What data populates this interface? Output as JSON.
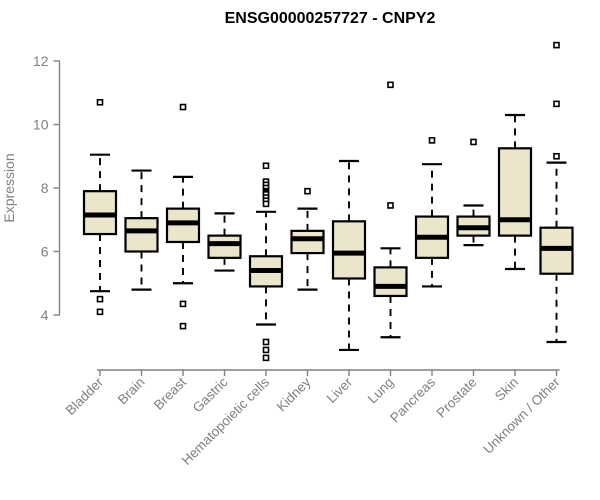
{
  "chart_data": {
    "type": "boxplot",
    "title": "ENSG00000257727 - CNPY2",
    "ylabel": "Expression",
    "xlabel": "",
    "ylim": [
      4,
      12
    ],
    "yticks": [
      4,
      6,
      8,
      10,
      12
    ],
    "grid": false,
    "legend": "none",
    "categories": [
      "Bladder",
      "Brain",
      "Breast",
      "Gastric",
      "Hematopoietic cells",
      "Kidney",
      "Liver",
      "Lung",
      "Pancreas",
      "Prostate",
      "Skin",
      "Unknown / Other"
    ],
    "boxes": [
      {
        "category": "Bladder",
        "whisker_low": 4.75,
        "q1": 6.55,
        "median": 7.15,
        "q3": 7.9,
        "whisker_high": 9.05,
        "outliers": [
          10.7,
          4.5,
          4.1
        ]
      },
      {
        "category": "Brain",
        "whisker_low": 4.8,
        "q1": 6.0,
        "median": 6.65,
        "q3": 7.05,
        "whisker_high": 8.55,
        "outliers": []
      },
      {
        "category": "Breast",
        "whisker_low": 5.0,
        "q1": 6.3,
        "median": 6.9,
        "q3": 7.35,
        "whisker_high": 8.35,
        "outliers": [
          10.55,
          4.35,
          3.65
        ]
      },
      {
        "category": "Gastric",
        "whisker_low": 5.4,
        "q1": 5.8,
        "median": 6.25,
        "q3": 6.5,
        "whisker_high": 7.2,
        "outliers": []
      },
      {
        "category": "Hematopoietic cells",
        "whisker_low": 3.7,
        "q1": 4.9,
        "median": 5.4,
        "q3": 5.85,
        "whisker_high": 7.25,
        "outliers": [
          8.7,
          8.2,
          8.1,
          8.0,
          7.9,
          7.85,
          7.8,
          7.7,
          7.6,
          7.5,
          3.15,
          2.9,
          2.65
        ]
      },
      {
        "category": "Kidney",
        "whisker_low": 4.8,
        "q1": 5.95,
        "median": 6.4,
        "q3": 6.65,
        "whisker_high": 7.35,
        "outliers": [
          7.9
        ]
      },
      {
        "category": "Liver",
        "whisker_low": 2.9,
        "q1": 5.15,
        "median": 5.95,
        "q3": 6.95,
        "whisker_high": 8.85,
        "outliers": []
      },
      {
        "category": "Lung",
        "whisker_low": 3.3,
        "q1": 4.6,
        "median": 4.9,
        "q3": 5.5,
        "whisker_high": 6.1,
        "outliers": [
          11.25,
          7.45
        ]
      },
      {
        "category": "Pancreas",
        "whisker_low": 4.9,
        "q1": 5.8,
        "median": 6.45,
        "q3": 7.1,
        "whisker_high": 8.75,
        "outliers": [
          9.5
        ]
      },
      {
        "category": "Prostate",
        "whisker_low": 6.2,
        "q1": 6.5,
        "median": 6.75,
        "q3": 7.1,
        "whisker_high": 7.45,
        "outliers": [
          9.45
        ]
      },
      {
        "category": "Skin",
        "whisker_low": 5.45,
        "q1": 6.5,
        "median": 7.0,
        "q3": 9.25,
        "whisker_high": 10.3,
        "outliers": []
      },
      {
        "category": "Unknown / Other",
        "whisker_low": 3.15,
        "q1": 5.3,
        "median": 6.1,
        "q3": 6.75,
        "whisker_high": 8.8,
        "outliers": [
          12.5,
          10.65,
          9.0
        ]
      }
    ],
    "colors": {
      "box_fill": "#EAE5CB",
      "box_border": "#000000",
      "median": "#000000",
      "whisker": "#000000",
      "outlier_stroke": "#000000",
      "outlier_fill": "#FFFFFF",
      "axis": "#808080",
      "title_color": "#000000",
      "background": "#FFFFFF"
    }
  }
}
